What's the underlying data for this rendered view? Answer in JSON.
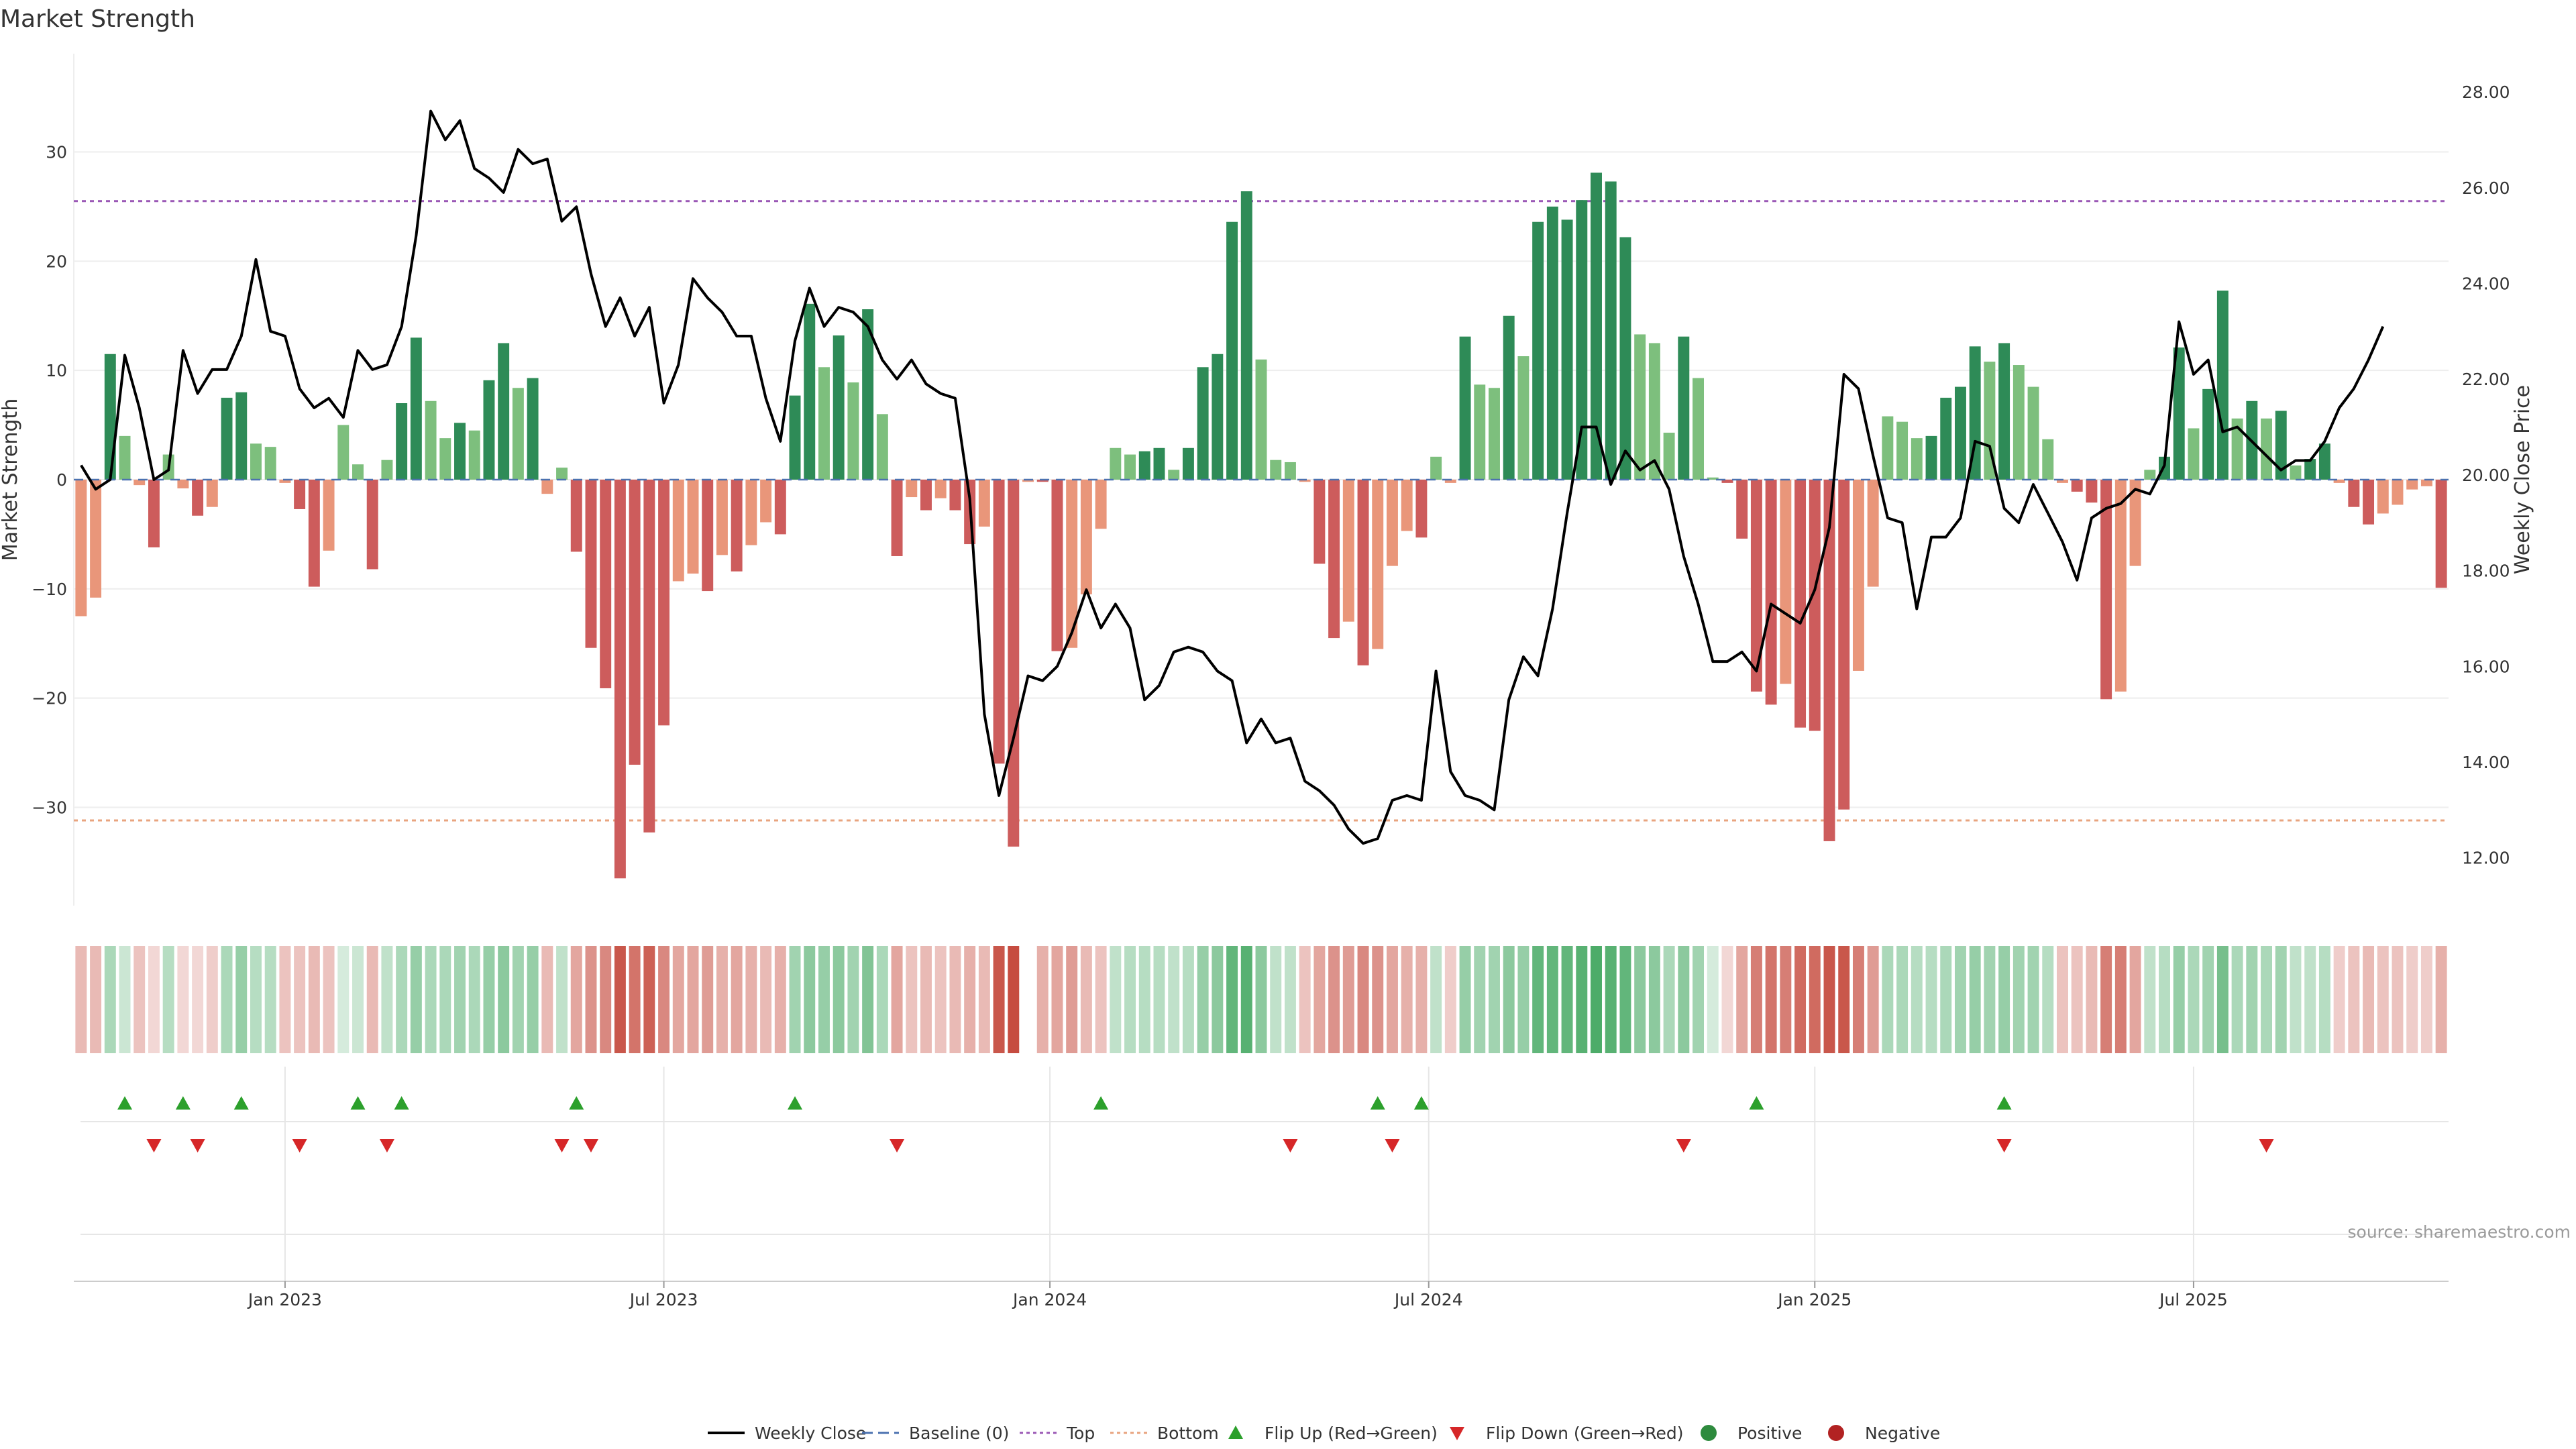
{
  "chart_data": {
    "type": "bar",
    "title": "Market Strength",
    "ylabel": "Market Strength",
    "y2label": "Weekly Close Price",
    "ylim": [
      -39,
      39
    ],
    "y2lim": [
      11,
      28.8
    ],
    "yticks": [
      -30,
      -20,
      -10,
      0,
      10,
      20,
      30
    ],
    "y2ticks": [
      12,
      14,
      16,
      18,
      20,
      22,
      24,
      26,
      28
    ],
    "y2tick_labels": [
      "12.00",
      "14.00",
      "16.00",
      "18.00",
      "20.00",
      "22.00",
      "24.00",
      "26.00",
      "28.00"
    ],
    "top_line": 25.5,
    "bottom_line": -31.2,
    "x_tick_labels": [
      "Jan 2023",
      "Jul 2023",
      "Jan 2024",
      "Jul 2024",
      "Jan 2025",
      "Jul 2025"
    ],
    "strength": [
      -12.5,
      -10.8,
      11.5,
      4,
      -0.5,
      -6.2,
      2.3,
      -0.8,
      -3.3,
      -2.5,
      7.5,
      8,
      3.3,
      3,
      -0.3,
      -2.7,
      -9.8,
      -6.5,
      5,
      1.4,
      -8.2,
      1.8,
      7,
      13,
      7.2,
      3.8,
      5.2,
      4.5,
      9.1,
      12.5,
      8.4,
      9.3,
      -1.3,
      1.1,
      -6.6,
      -15.4,
      -19.1,
      -36.5,
      -26.1,
      -32.3,
      -22.5,
      -9.3,
      -8.6,
      -10.2,
      -6.9,
      -8.4,
      -6,
      -3.9,
      -5,
      7.7,
      16.1,
      10.3,
      13.2,
      8.9,
      15.6,
      6,
      -7,
      -1.6,
      -2.8,
      -1.7,
      -2.8,
      -5.9,
      -4.3,
      -26,
      -33.6,
      -0.2,
      -0.2,
      -15.7,
      -15.4,
      -10.5,
      -4.5,
      2.9,
      2.3,
      2.6,
      2.9,
      0.9,
      2.9,
      10.3,
      11.5,
      23.6,
      26.4,
      11,
      1.8,
      1.6,
      -0.2,
      -7.7,
      -14.5,
      -13,
      -17,
      -15.5,
      -7.9,
      -4.7,
      -5.3,
      2.1,
      -0.3,
      13.1,
      8.7,
      8.4,
      15,
      11.3,
      23.6,
      25,
      23.8,
      25.6,
      28.1,
      27.3,
      22.2,
      13.3,
      12.5,
      4.3,
      13.1,
      9.3,
      0.2,
      -0.3,
      -5.4,
      -19.4,
      -20.6,
      -18.7,
      -22.7,
      -23,
      -33.1,
      -30.2,
      -17.5,
      -9.8,
      5.8,
      5.3,
      3.8,
      4,
      7.5,
      8.5,
      12.2,
      10.8,
      12.5,
      10.5,
      8.5,
      3.7,
      -0.3,
      -1.1,
      -2.1,
      -20.1,
      -19.4,
      -7.9,
      0.9,
      2.1,
      12.1,
      4.7,
      8.3,
      17.3,
      5.6,
      7.2,
      5.6,
      6.3,
      1.3,
      1.9,
      3.3,
      -0.3,
      -2.5,
      -4.1,
      -3.1,
      -2.3,
      -0.9,
      -0.6,
      -9.9
    ],
    "weekly_close": [
      20.2,
      19.7,
      19.9,
      22.5,
      21.4,
      19.9,
      20.1,
      22.6,
      21.7,
      22.2,
      22.2,
      22.9,
      24.5,
      23.0,
      22.9,
      21.8,
      21.4,
      21.6,
      21.2,
      22.6,
      22.2,
      22.3,
      23.1,
      25.0,
      27.6,
      27.0,
      27.4,
      26.4,
      26.2,
      25.9,
      26.8,
      26.5,
      26.6,
      25.3,
      25.6,
      24.2,
      23.1,
      23.7,
      22.9,
      23.5,
      21.5,
      22.3,
      24.1,
      23.7,
      23.4,
      22.9,
      22.9,
      21.6,
      20.7,
      22.8,
      23.9,
      23.1,
      23.5,
      23.4,
      23.1,
      22.4,
      22.0,
      22.4,
      21.9,
      21.7,
      21.6,
      19.5,
      15.0,
      13.3,
      14.5,
      15.8,
      15.7,
      16.0,
      16.7,
      17.6,
      16.8,
      17.3,
      16.8,
      15.3,
      15.6,
      16.3,
      16.4,
      16.3,
      15.9,
      15.7,
      14.4,
      14.9,
      14.4,
      14.5,
      13.6,
      13.4,
      13.1,
      12.6,
      12.3,
      12.4,
      13.2,
      13.3,
      13.2,
      15.9,
      13.8,
      13.3,
      13.2,
      13.0,
      15.3,
      16.2,
      15.8,
      17.2,
      19.2,
      21.0,
      21.0,
      19.8,
      20.5,
      20.1,
      20.3,
      19.7,
      18.3,
      17.3,
      16.1,
      16.1,
      16.3,
      15.9,
      17.3,
      17.1,
      16.9,
      17.6,
      18.9,
      22.1,
      21.8,
      20.4,
      19.1,
      19.0,
      17.2,
      18.7,
      18.7,
      19.1,
      20.7,
      20.6,
      19.3,
      19.0,
      19.8,
      19.2,
      18.6,
      17.8,
      19.1,
      19.3,
      19.4,
      19.7,
      19.6,
      20.2,
      23.2,
      22.1,
      22.4,
      20.9,
      21.0,
      20.7,
      20.4,
      20.1,
      20.3,
      20.3,
      20.7,
      21.4,
      21.8,
      22.4,
      23.1
    ],
    "regime_intensity": [
      0.35,
      0.35,
      0.4,
      0.25,
      0.3,
      0.2,
      0.35,
      0.2,
      0.2,
      0.25,
      0.4,
      0.5,
      0.35,
      0.35,
      0.3,
      0.3,
      0.35,
      0.3,
      0.2,
      0.25,
      0.35,
      0.3,
      0.4,
      0.5,
      0.4,
      0.4,
      0.45,
      0.4,
      0.5,
      0.55,
      0.45,
      0.5,
      0.35,
      0.3,
      0.45,
      0.55,
      0.6,
      0.85,
      0.7,
      0.8,
      0.6,
      0.45,
      0.45,
      0.5,
      0.4,
      0.45,
      0.4,
      0.35,
      0.4,
      0.45,
      0.55,
      0.5,
      0.55,
      0.45,
      0.6,
      0.4,
      0.45,
      0.3,
      0.35,
      0.3,
      0.35,
      0.4,
      0.35,
      0.85,
      0.9,
      null,
      0.4,
      0.45,
      0.5,
      0.35,
      0.3,
      0.3,
      0.35,
      0.35,
      0.35,
      0.3,
      0.35,
      0.5,
      0.55,
      0.75,
      0.8,
      0.55,
      0.3,
      0.3,
      0.3,
      0.45,
      0.55,
      0.5,
      0.6,
      0.55,
      0.45,
      0.4,
      0.4,
      0.3,
      0.25,
      0.5,
      0.45,
      0.45,
      0.55,
      0.5,
      0.75,
      0.75,
      0.75,
      0.8,
      0.85,
      0.8,
      0.75,
      0.55,
      0.55,
      0.4,
      0.55,
      0.45,
      0.2,
      0.2,
      0.45,
      0.65,
      0.7,
      0.65,
      0.75,
      0.75,
      0.85,
      0.85,
      0.65,
      0.5,
      0.4,
      0.4,
      0.35,
      0.35,
      0.4,
      0.45,
      0.5,
      0.45,
      0.5,
      0.45,
      0.45,
      0.35,
      0.3,
      0.3,
      0.35,
      0.65,
      0.65,
      0.45,
      0.3,
      0.35,
      0.5,
      0.4,
      0.45,
      0.65,
      0.4,
      0.45,
      0.4,
      0.45,
      0.3,
      0.3,
      0.35,
      0.25,
      0.3,
      0.35,
      0.3,
      0.3,
      0.25,
      0.25,
      0.4
    ],
    "flip_up_index": [
      3,
      7,
      11,
      19,
      22,
      34,
      49,
      70,
      89,
      92,
      115,
      132
    ],
    "flip_down_index": [
      5,
      8,
      15,
      21,
      33,
      35,
      56,
      83,
      90,
      110,
      132,
      150
    ],
    "source": "source: sharemaestro.com",
    "legend": [
      {
        "label": "Weekly Close",
        "kind": "line",
        "color": "#000000"
      },
      {
        "label": "Baseline (0)",
        "kind": "dash",
        "color": "#4c72b0"
      },
      {
        "label": "Top",
        "kind": "dot",
        "color": "#9b59b6"
      },
      {
        "label": "Bottom",
        "kind": "dot",
        "color": "#e8a47f"
      },
      {
        "label": "Flip Up (Red→Green)",
        "kind": "tri-up",
        "color": "#2ca02c"
      },
      {
        "label": "Flip Down (Green→Red)",
        "kind": "tri-down",
        "color": "#d62728"
      },
      {
        "label": "Positive",
        "kind": "circle",
        "color": "#2e8b3e"
      },
      {
        "label": "Negative",
        "kind": "circle",
        "color": "#b22222"
      }
    ],
    "colors": {
      "pos_strong": "#2e8b57",
      "pos_light": "#7dbf7d",
      "neg_strong": "#cd5c5c",
      "neg_light": "#e9967a",
      "line": "#000000",
      "grid": "#eeeeee"
    }
  }
}
